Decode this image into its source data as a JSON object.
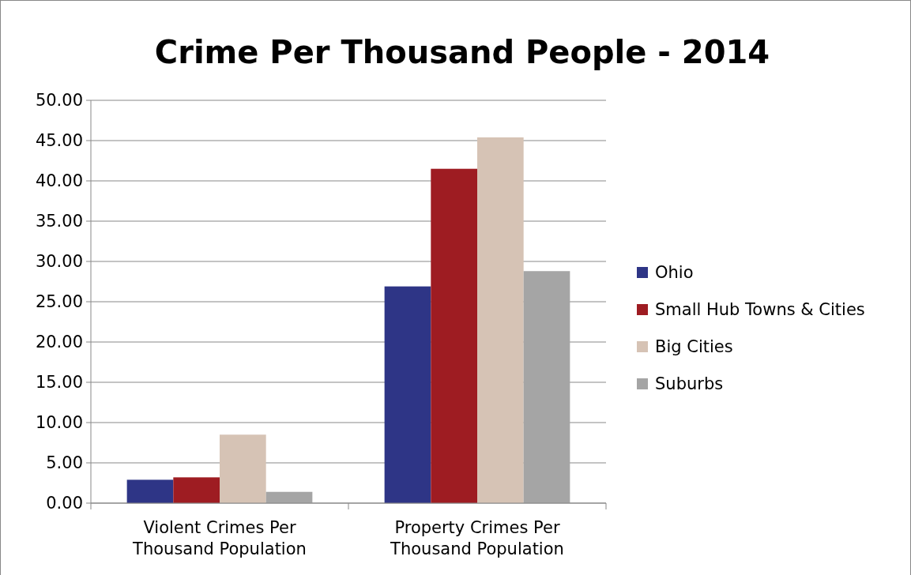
{
  "chart_data": {
    "type": "bar",
    "title": "Crime Per Thousand People - 2014",
    "categories": [
      "Violent Crimes Per Thousand Population",
      "Property Crimes Per Thousand Population"
    ],
    "series": [
      {
        "name": "Ohio",
        "color": "#2e3586",
        "values": [
          2.9,
          26.9
        ]
      },
      {
        "name": "Small Hub Towns & Cities",
        "color": "#9e1c22",
        "values": [
          3.2,
          41.5
        ]
      },
      {
        "name": "Big Cities",
        "color": "#d6c3b5",
        "values": [
          8.5,
          45.4
        ]
      },
      {
        "name": "Suburbs",
        "color": "#a5a5a5",
        "values": [
          1.4,
          28.8
        ]
      }
    ],
    "ylim": [
      0,
      50
    ],
    "yticks": [
      {
        "value": 0,
        "label": "0.00"
      },
      {
        "value": 5,
        "label": "5.00"
      },
      {
        "value": 10,
        "label": "10.00"
      },
      {
        "value": 15,
        "label": "15.00"
      },
      {
        "value": 20,
        "label": "20.00"
      },
      {
        "value": 25,
        "label": "25.00"
      },
      {
        "value": 30,
        "label": "30.00"
      },
      {
        "value": 35,
        "label": "35.00"
      },
      {
        "value": 40,
        "label": "40.00"
      },
      {
        "value": 45,
        "label": "45.00"
      },
      {
        "value": 50,
        "label": "50.00"
      }
    ],
    "grid": "y",
    "legend": "right"
  }
}
